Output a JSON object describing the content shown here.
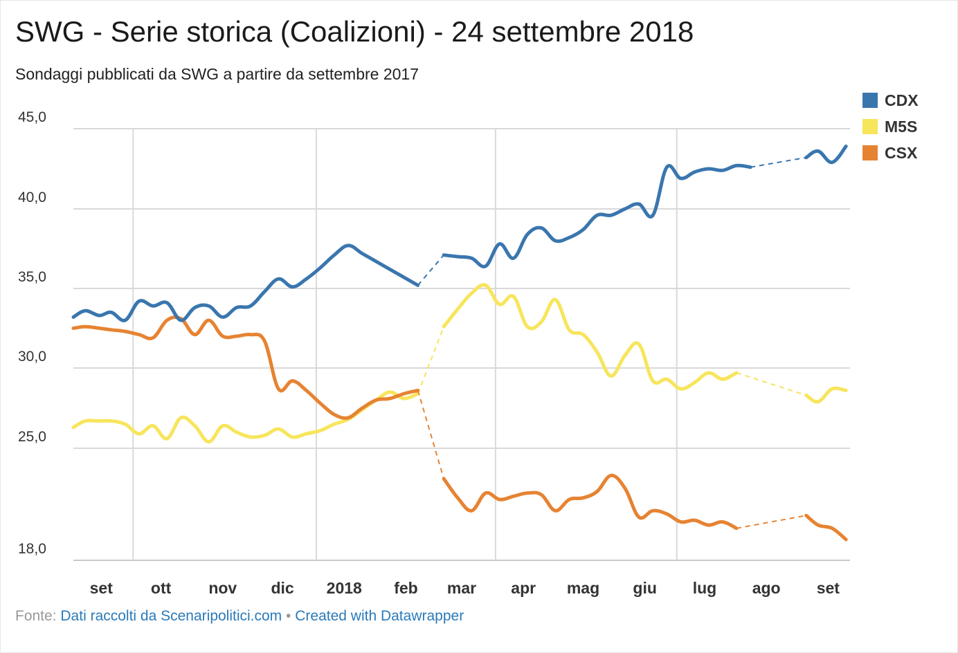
{
  "title": "SWG - Serie storica (Coalizioni) - 24 settembre 2018",
  "subtitle": "Sondaggi pubblicati da SWG a partire da settembre 2017",
  "footer": {
    "source_prefix": "Fonte:",
    "source_link": "Dati raccolti da Scenaripolitici.com",
    "separator": "•",
    "credit_link": "Created with Datawrapper"
  },
  "chart_data": {
    "type": "line",
    "title": "SWG - Serie storica (Coalizioni) - 24 settembre 2018",
    "subtitle": "Sondaggi pubblicati da SWG a partire da settembre 2017",
    "xlabel": "",
    "ylabel": "",
    "ylim": [
      18.0,
      45.0
    ],
    "y_ticks": [
      {
        "value": 45.0,
        "label": "45,0"
      },
      {
        "value": 40.0,
        "label": "40,0"
      },
      {
        "value": 35.0,
        "label": "35,0"
      },
      {
        "value": 30.0,
        "label": "30,0"
      },
      {
        "value": 25.0,
        "label": "25,0"
      },
      {
        "value": 18.0,
        "label": "18,0"
      }
    ],
    "x_ticks": [
      {
        "label": "set",
        "date": "2017-09-15"
      },
      {
        "label": "ott",
        "date": "2017-10-15"
      },
      {
        "label": "nov",
        "date": "2017-11-15"
      },
      {
        "label": "dic",
        "date": "2017-12-15"
      },
      {
        "label": "2018",
        "date": "2018-01-15"
      },
      {
        "label": "feb",
        "date": "2018-02-15"
      },
      {
        "label": "mar",
        "date": "2018-03-15"
      },
      {
        "label": "apr",
        "date": "2018-04-15"
      },
      {
        "label": "mag",
        "date": "2018-05-15"
      },
      {
        "label": "giu",
        "date": "2018-06-15"
      },
      {
        "label": "lug",
        "date": "2018-07-15"
      },
      {
        "label": "ago",
        "date": "2018-08-15"
      },
      {
        "label": "set",
        "date": "2018-09-15"
      }
    ],
    "vgrid_dates": [
      "2017-10-01",
      "2018-01-01",
      "2018-04-01",
      "2018-07-01"
    ],
    "x_range": [
      "2017-09-01",
      "2018-09-26"
    ],
    "grid": true,
    "legend_position": "top-right",
    "series": [
      {
        "name": "CDX",
        "color": "#3a76ae",
        "segments": [
          {
            "dashed": false,
            "points": [
              [
                "2017-09-01",
                33.2
              ],
              [
                "2017-09-07",
                33.6
              ],
              [
                "2017-09-14",
                33.3
              ],
              [
                "2017-09-20",
                33.5
              ],
              [
                "2017-09-27",
                33.0
              ],
              [
                "2017-10-04",
                34.2
              ],
              [
                "2017-10-11",
                33.9
              ],
              [
                "2017-10-18",
                34.1
              ],
              [
                "2017-10-25",
                33.0
              ],
              [
                "2017-11-01",
                33.8
              ],
              [
                "2017-11-08",
                33.9
              ],
              [
                "2017-11-15",
                33.2
              ],
              [
                "2017-11-22",
                33.8
              ],
              [
                "2017-11-29",
                33.9
              ],
              [
                "2017-12-06",
                34.8
              ],
              [
                "2017-12-13",
                35.6
              ],
              [
                "2017-12-20",
                35.1
              ],
              [
                "2017-12-27",
                35.6
              ],
              [
                "2018-01-03",
                36.3
              ],
              [
                "2018-01-10",
                37.1
              ],
              [
                "2018-01-17",
                37.7
              ],
              [
                "2018-01-24",
                37.2
              ],
              [
                "2018-01-31",
                36.7
              ],
              [
                "2018-02-07",
                36.2
              ],
              [
                "2018-02-14",
                35.7
              ],
              [
                "2018-02-21",
                35.2
              ]
            ]
          },
          {
            "dashed": true,
            "points": [
              [
                "2018-02-21",
                35.2
              ],
              [
                "2018-03-06",
                37.1
              ]
            ]
          },
          {
            "dashed": false,
            "points": [
              [
                "2018-03-06",
                37.1
              ],
              [
                "2018-03-13",
                37.0
              ],
              [
                "2018-03-20",
                36.9
              ],
              [
                "2018-03-27",
                36.4
              ],
              [
                "2018-04-03",
                37.8
              ],
              [
                "2018-04-10",
                36.9
              ],
              [
                "2018-04-17",
                38.4
              ],
              [
                "2018-04-24",
                38.8
              ],
              [
                "2018-05-01",
                38.0
              ],
              [
                "2018-05-08",
                38.2
              ],
              [
                "2018-05-15",
                38.7
              ],
              [
                "2018-05-22",
                39.6
              ],
              [
                "2018-05-29",
                39.6
              ],
              [
                "2018-06-05",
                40.0
              ],
              [
                "2018-06-12",
                40.3
              ],
              [
                "2018-06-19",
                39.6
              ],
              [
                "2018-06-26",
                42.6
              ],
              [
                "2018-07-03",
                41.9
              ],
              [
                "2018-07-10",
                42.3
              ],
              [
                "2018-07-17",
                42.5
              ],
              [
                "2018-07-24",
                42.4
              ],
              [
                "2018-07-31",
                42.7
              ],
              [
                "2018-08-07",
                42.6
              ]
            ]
          },
          {
            "dashed": true,
            "points": [
              [
                "2018-08-07",
                42.6
              ],
              [
                "2018-09-04",
                43.2
              ]
            ]
          },
          {
            "dashed": false,
            "points": [
              [
                "2018-09-04",
                43.2
              ],
              [
                "2018-09-10",
                43.6
              ],
              [
                "2018-09-17",
                42.9
              ],
              [
                "2018-09-24",
                43.9
              ]
            ]
          }
        ]
      },
      {
        "name": "M5S",
        "color": "#f7e55c",
        "segments": [
          {
            "dashed": false,
            "points": [
              [
                "2017-09-01",
                26.3
              ],
              [
                "2017-09-07",
                26.7
              ],
              [
                "2017-09-14",
                26.7
              ],
              [
                "2017-09-20",
                26.7
              ],
              [
                "2017-09-27",
                26.5
              ],
              [
                "2017-10-04",
                25.9
              ],
              [
                "2017-10-11",
                26.4
              ],
              [
                "2017-10-18",
                25.6
              ],
              [
                "2017-10-25",
                26.9
              ],
              [
                "2017-11-01",
                26.4
              ],
              [
                "2017-11-08",
                25.4
              ],
              [
                "2017-11-15",
                26.4
              ],
              [
                "2017-11-22",
                26.0
              ],
              [
                "2017-11-29",
                25.7
              ],
              [
                "2017-12-06",
                25.8
              ],
              [
                "2017-12-13",
                26.2
              ],
              [
                "2017-12-20",
                25.7
              ],
              [
                "2017-12-27",
                25.9
              ],
              [
                "2018-01-03",
                26.1
              ],
              [
                "2018-01-10",
                26.5
              ],
              [
                "2018-01-17",
                26.8
              ],
              [
                "2018-01-24",
                27.4
              ],
              [
                "2018-01-31",
                28.0
              ],
              [
                "2018-02-07",
                28.5
              ],
              [
                "2018-02-14",
                28.1
              ],
              [
                "2018-02-21",
                28.4
              ]
            ]
          },
          {
            "dashed": true,
            "points": [
              [
                "2018-02-21",
                28.4
              ],
              [
                "2018-03-06",
                32.6
              ]
            ]
          },
          {
            "dashed": false,
            "points": [
              [
                "2018-03-06",
                32.6
              ],
              [
                "2018-03-13",
                33.7
              ],
              [
                "2018-03-20",
                34.7
              ],
              [
                "2018-03-27",
                35.2
              ],
              [
                "2018-04-03",
                34.0
              ],
              [
                "2018-04-10",
                34.5
              ],
              [
                "2018-04-17",
                32.6
              ],
              [
                "2018-04-24",
                32.9
              ],
              [
                "2018-05-01",
                34.3
              ],
              [
                "2018-05-08",
                32.4
              ],
              [
                "2018-05-15",
                32.1
              ],
              [
                "2018-05-22",
                31.0
              ],
              [
                "2018-05-29",
                29.5
              ],
              [
                "2018-06-05",
                30.8
              ],
              [
                "2018-06-12",
                31.5
              ],
              [
                "2018-06-19",
                29.2
              ],
              [
                "2018-06-26",
                29.3
              ],
              [
                "2018-07-03",
                28.7
              ],
              [
                "2018-07-10",
                29.1
              ],
              [
                "2018-07-17",
                29.7
              ],
              [
                "2018-07-24",
                29.3
              ],
              [
                "2018-07-31",
                29.7
              ]
            ]
          },
          {
            "dashed": true,
            "points": [
              [
                "2018-07-31",
                29.7
              ],
              [
                "2018-09-04",
                28.3
              ]
            ]
          },
          {
            "dashed": false,
            "points": [
              [
                "2018-09-04",
                28.3
              ],
              [
                "2018-09-10",
                27.9
              ],
              [
                "2018-09-17",
                28.7
              ],
              [
                "2018-09-24",
                28.6
              ]
            ]
          }
        ]
      },
      {
        "name": "CSX",
        "color": "#e68332",
        "segments": [
          {
            "dashed": false,
            "points": [
              [
                "2017-09-01",
                32.5
              ],
              [
                "2017-09-07",
                32.6
              ],
              [
                "2017-09-14",
                32.5
              ],
              [
                "2017-09-20",
                32.4
              ],
              [
                "2017-09-27",
                32.3
              ],
              [
                "2017-10-04",
                32.1
              ],
              [
                "2017-10-11",
                31.9
              ],
              [
                "2017-10-18",
                33.0
              ],
              [
                "2017-10-25",
                33.1
              ],
              [
                "2017-11-01",
                32.1
              ],
              [
                "2017-11-08",
                33.0
              ],
              [
                "2017-11-15",
                32.0
              ],
              [
                "2017-11-22",
                32.0
              ],
              [
                "2017-11-29",
                32.1
              ],
              [
                "2017-12-06",
                31.7
              ],
              [
                "2017-12-13",
                28.7
              ],
              [
                "2017-12-20",
                29.2
              ],
              [
                "2017-12-27",
                28.6
              ],
              [
                "2018-01-03",
                27.8
              ],
              [
                "2018-01-10",
                27.1
              ],
              [
                "2018-01-17",
                26.9
              ],
              [
                "2018-01-24",
                27.5
              ],
              [
                "2018-01-31",
                28.0
              ],
              [
                "2018-02-07",
                28.1
              ],
              [
                "2018-02-14",
                28.4
              ],
              [
                "2018-02-21",
                28.6
              ]
            ]
          },
          {
            "dashed": true,
            "points": [
              [
                "2018-02-21",
                28.6
              ],
              [
                "2018-03-06",
                23.1
              ]
            ]
          },
          {
            "dashed": false,
            "points": [
              [
                "2018-03-06",
                23.1
              ],
              [
                "2018-03-13",
                21.9
              ],
              [
                "2018-03-20",
                21.1
              ],
              [
                "2018-03-27",
                22.2
              ],
              [
                "2018-04-03",
                21.8
              ],
              [
                "2018-04-10",
                22.0
              ],
              [
                "2018-04-17",
                22.2
              ],
              [
                "2018-04-24",
                22.1
              ],
              [
                "2018-05-01",
                21.1
              ],
              [
                "2018-05-08",
                21.8
              ],
              [
                "2018-05-15",
                21.9
              ],
              [
                "2018-05-22",
                22.3
              ],
              [
                "2018-05-29",
                23.3
              ],
              [
                "2018-06-05",
                22.5
              ],
              [
                "2018-06-12",
                20.7
              ],
              [
                "2018-06-19",
                21.1
              ],
              [
                "2018-06-26",
                20.9
              ],
              [
                "2018-07-03",
                20.4
              ],
              [
                "2018-07-10",
                20.5
              ],
              [
                "2018-07-17",
                20.2
              ],
              [
                "2018-07-24",
                20.4
              ],
              [
                "2018-07-31",
                20.0
              ]
            ]
          },
          {
            "dashed": true,
            "points": [
              [
                "2018-07-31",
                20.0
              ],
              [
                "2018-09-04",
                20.8
              ]
            ]
          },
          {
            "dashed": false,
            "points": [
              [
                "2018-09-04",
                20.8
              ],
              [
                "2018-09-10",
                20.2
              ],
              [
                "2018-09-17",
                20.0
              ],
              [
                "2018-09-24",
                19.3
              ]
            ]
          }
        ]
      }
    ]
  }
}
